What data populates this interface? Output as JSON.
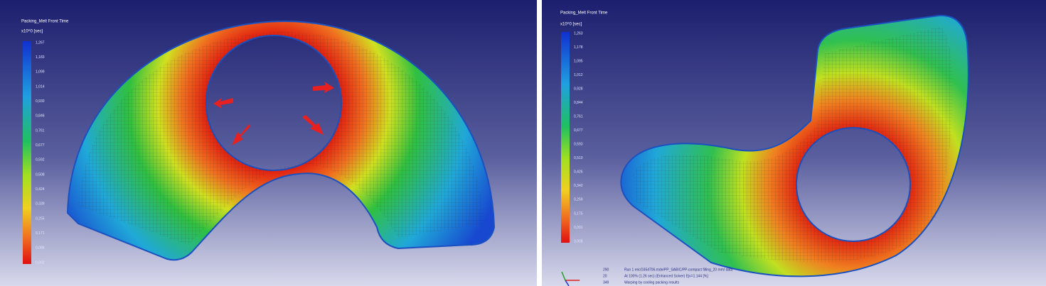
{
  "left": {
    "header": "Packing_Melt Front Time",
    "unit": "x10^0 [sec]",
    "scale": [
      "1,267",
      "1,183",
      "1,099",
      "1,014",
      "0,930",
      "0,846",
      "0,761",
      "0,677",
      "0,592",
      "0,508",
      "0,424",
      "0,339",
      "0,255",
      "0,171",
      "0,086",
      "0,002"
    ]
  },
  "right": {
    "header": "Packing_Melt Front Time",
    "unit": "x10^0 [sec]",
    "scale": [
      "1,263",
      "1,178",
      "1,095",
      "1,012",
      "0,928",
      "0,844",
      "0,761",
      "0,677",
      "0,593",
      "0,510",
      "0,426",
      "0,342",
      "0,259",
      "0,175",
      "0,091",
      "0,008"
    ],
    "footer": [
      [
        "290",
        "Run 1 ericO354706.mde/PP_SABIC/PP-compact filling_20 mm/ data"
      ],
      [
        "20",
        "At 100% (1.26 sec) (Enhanced Solver) Ejv=1.144 [%]"
      ],
      [
        "349",
        "Warping by cooling packing results"
      ]
    ]
  }
}
